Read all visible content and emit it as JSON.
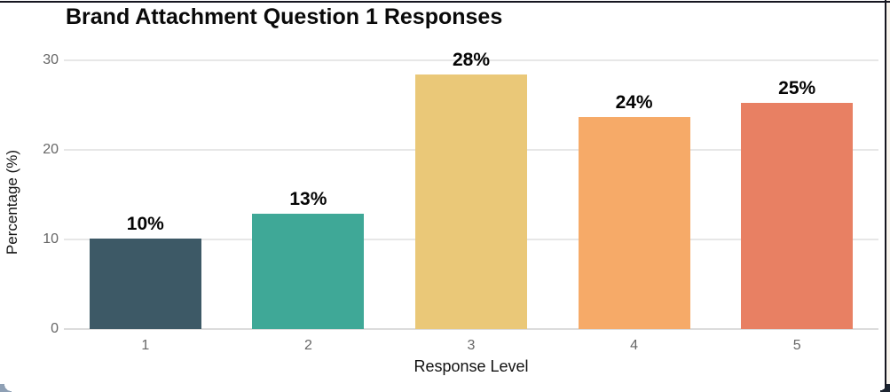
{
  "window": {
    "frame_color": "#161620"
  },
  "chart_data": {
    "type": "bar",
    "title": "Brand Attachment Question 1 Responses",
    "xlabel": "Response Level",
    "ylabel": "Percentage (%)",
    "categories": [
      "1",
      "2",
      "3",
      "4",
      "5"
    ],
    "values": [
      10.1,
      12.9,
      28.4,
      23.7,
      25.2
    ],
    "bar_labels": [
      "10%",
      "13%",
      "28%",
      "24%",
      "25%"
    ],
    "bar_colors": [
      "#3d5966",
      "#3fa897",
      "#eac878",
      "#f6aa68",
      "#e88063"
    ],
    "ylim": [
      0,
      30
    ],
    "yticks": [
      0,
      10,
      20,
      30
    ],
    "grid": "horizontal",
    "legend": "none",
    "title_color": "#0a0a0a",
    "tick_color": "#666666",
    "gridline_color": "#e7e7e7"
  }
}
